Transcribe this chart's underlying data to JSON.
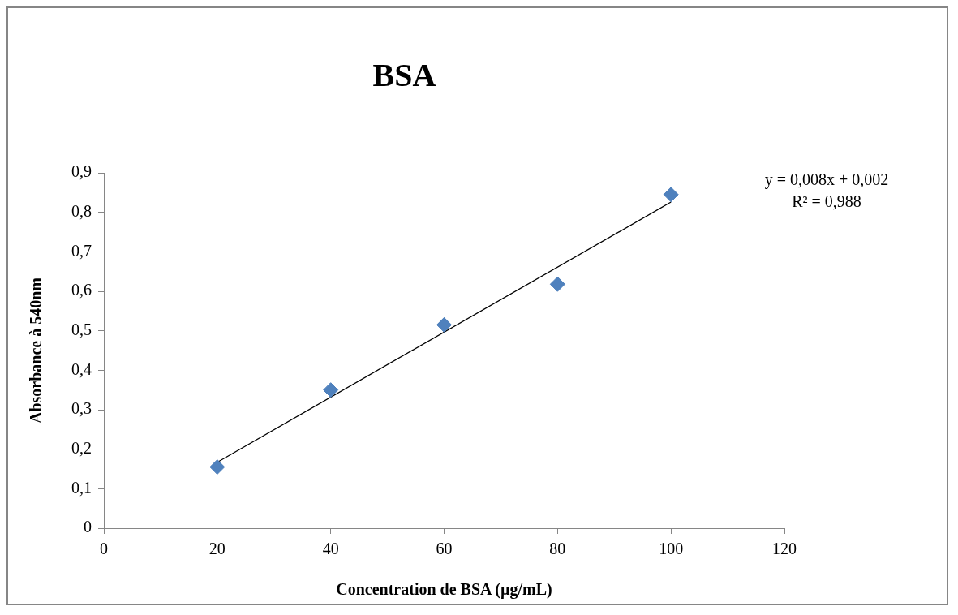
{
  "chart_data": {
    "type": "scatter",
    "title": "BSA",
    "xlabel": "Concentration de BSA (µg/mL)",
    "ylabel": "Absorbance à 540nm",
    "x": [
      20,
      40,
      60,
      80,
      100
    ],
    "series": [
      {
        "color": "#4f81bd",
        "values": [
          0.155,
          0.35,
          0.515,
          0.618,
          0.845
        ],
        "marker": "diamond"
      },
      {
        "type": "line",
        "x": [
          20,
          100
        ],
        "color": "#000000",
        "values": [
          0.167,
          0.826
        ],
        "marker": "none",
        "line_style": "solid"
      }
    ],
    "xlim": [
      0,
      120
    ],
    "xticks": [
      0,
      20,
      40,
      60,
      80,
      100,
      120
    ],
    "ylim": [
      0,
      0.9
    ],
    "yticks": [
      0,
      {
        "value": 0.1,
        "label": "0,1"
      },
      {
        "value": 0.2,
        "label": "0,2"
      },
      {
        "value": 0.3,
        "label": "0,3"
      },
      {
        "value": 0.4,
        "label": "0,4"
      },
      {
        "value": 0.5,
        "label": "0,5"
      },
      {
        "value": 0.6,
        "label": "0,6"
      },
      {
        "value": 0.7,
        "label": "0,7"
      },
      {
        "value": 0.8,
        "label": "0,8"
      },
      {
        "value": 0.9,
        "label": "0,9"
      }
    ],
    "annotations": [
      "y = 0,008x + 0,002",
      "R² = 0,988"
    ],
    "grid": false,
    "legend": false
  }
}
